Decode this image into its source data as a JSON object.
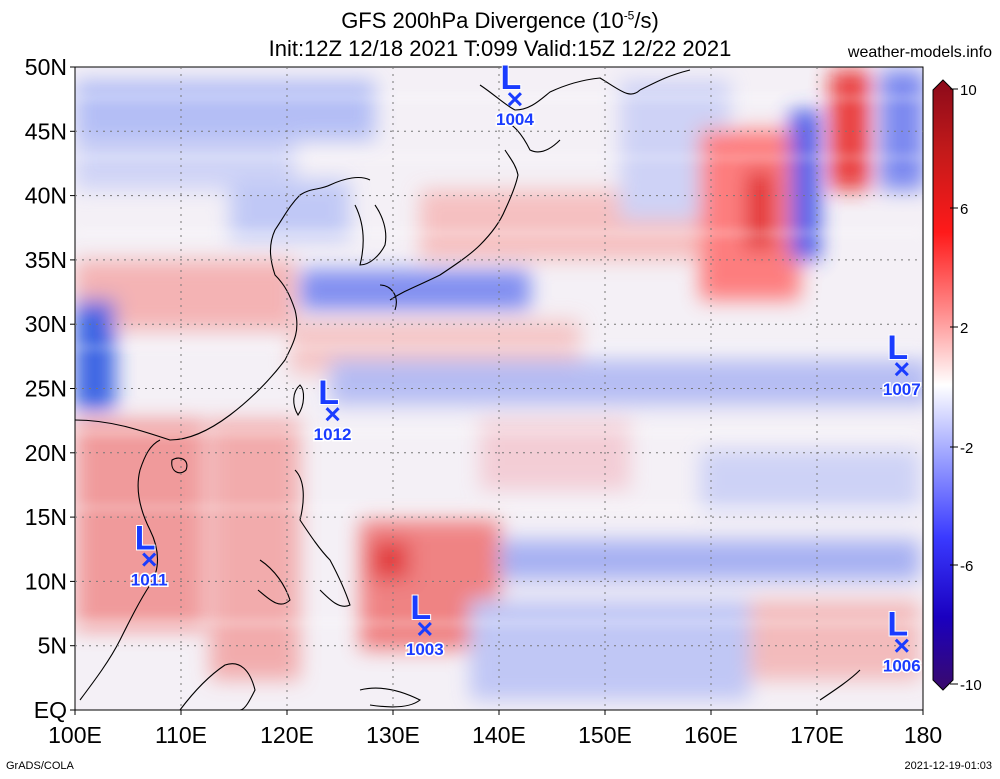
{
  "header": {
    "title_prefix": "GFS 200hPa Divergence (10",
    "title_exp": "-5",
    "title_suffix": "/s)",
    "subtitle": "Init:12Z 12/18 2021 T:099 Valid:15Z 12/22 2021",
    "site": "weather-models.info"
  },
  "footer": {
    "credit": "GrADS/COLA",
    "timestamp": "2021-12-19-01:03"
  },
  "map": {
    "lat_labels": [
      "50N",
      "45N",
      "40N",
      "35N",
      "30N",
      "25N",
      "20N",
      "15N",
      "10N",
      "5N",
      "EQ"
    ],
    "lon_labels": [
      "100E",
      "110E",
      "120E",
      "130E",
      "140E",
      "150E",
      "160E",
      "170E",
      "180"
    ],
    "lows": [
      {
        "symbol": "L",
        "pressure": "1004",
        "lon": 141.5,
        "lat": 47.5
      },
      {
        "symbol": "L",
        "pressure": "1012",
        "lon": 124.3,
        "lat": 23.0
      },
      {
        "symbol": "L",
        "pressure": "1007",
        "lon": 178.0,
        "lat": 26.5
      },
      {
        "symbol": "L",
        "pressure": "1011",
        "lon": 107.0,
        "lat": 11.7
      },
      {
        "symbol": "L",
        "pressure": "1003",
        "lon": 133.0,
        "lat": 6.3
      },
      {
        "symbol": "L",
        "pressure": "1006",
        "lon": 178.0,
        "lat": 5.0
      }
    ],
    "low_color": "#1a3cff"
  },
  "colorbar": {
    "labels": [
      "10",
      "6",
      "2",
      "-2",
      "-6",
      "-10"
    ],
    "colors": [
      "#3a0a6b",
      "#1a00d8",
      "#6a78ff",
      "#c8ccff",
      "#ffffff",
      "#ffc8c8",
      "#ff6a6a",
      "#e00000",
      "#8b0a1a"
    ]
  }
}
